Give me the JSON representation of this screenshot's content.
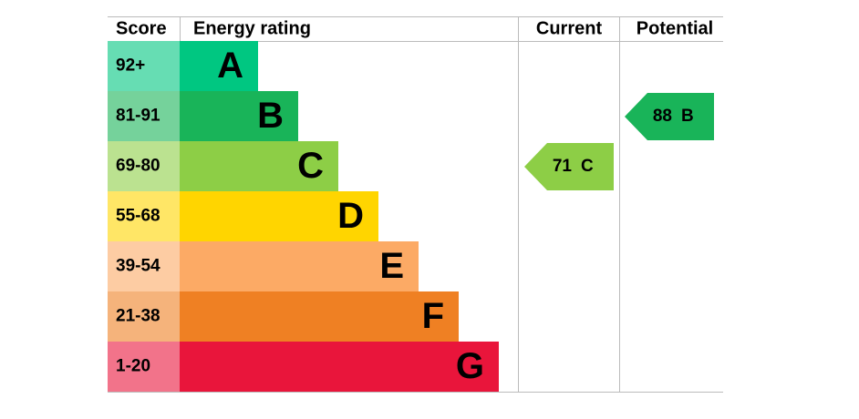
{
  "header": {
    "score": "Score",
    "rating": "Energy rating",
    "current": "Current",
    "potential": "Potential"
  },
  "bands": [
    {
      "score": "92+",
      "letter": "A",
      "color": "#00c781",
      "tint": "#66ddb3"
    },
    {
      "score": "81-91",
      "letter": "B",
      "color": "#19b459",
      "tint": "#75d29b"
    },
    {
      "score": "69-80",
      "letter": "C",
      "color": "#8dce46",
      "tint": "#bbe290"
    },
    {
      "score": "55-68",
      "letter": "D",
      "color": "#ffd500",
      "tint": "#ffe666"
    },
    {
      "score": "39-54",
      "letter": "E",
      "color": "#fcaa65",
      "tint": "#fdcca3"
    },
    {
      "score": "21-38",
      "letter": "F",
      "color": "#ef8023",
      "tint": "#f5b37b"
    },
    {
      "score": "1-20",
      "letter": "G",
      "color": "#e9153b",
      "tint": "#f2738a"
    }
  ],
  "current": {
    "value": 71,
    "letter": "C",
    "band": 2
  },
  "potential": {
    "value": 88,
    "letter": "B",
    "band": 1
  }
}
